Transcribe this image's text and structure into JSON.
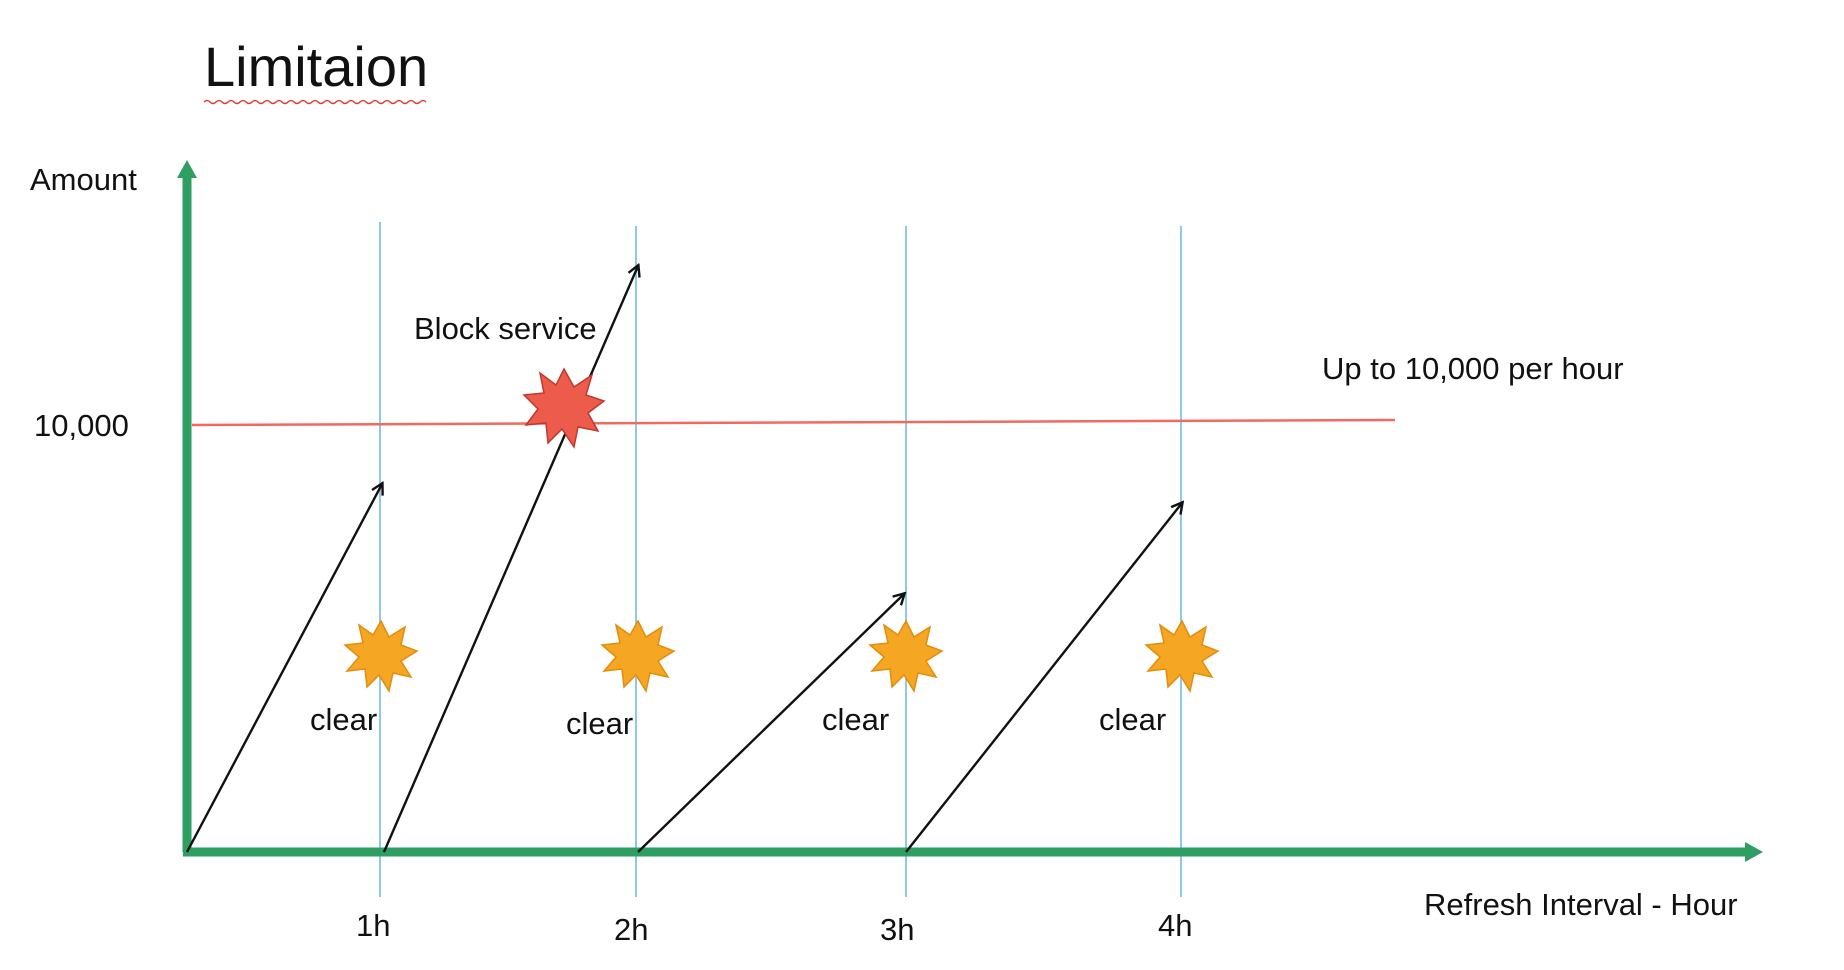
{
  "title": "Limitaion",
  "axes": {
    "y_label": "Amount",
    "x_label": "Refresh Interval - Hour",
    "y_tick": "10,000",
    "x_ticks": [
      "1h",
      "2h",
      "3h",
      "4h"
    ]
  },
  "limit_label": "Up to 10,000 per hour",
  "block_label": "Block service",
  "clear_labels": [
    "clear",
    "clear",
    "clear",
    "clear"
  ],
  "colors": {
    "axis": "#2e9e63",
    "interval_line": "#8ec9ec",
    "limit_line": "#ef6a5f",
    "arrow": "#111111",
    "clear_burst": "#f5a623",
    "block_burst": "#ec5b4c"
  },
  "icons": {
    "clear": "starburst-icon",
    "block": "explosion-icon"
  }
}
